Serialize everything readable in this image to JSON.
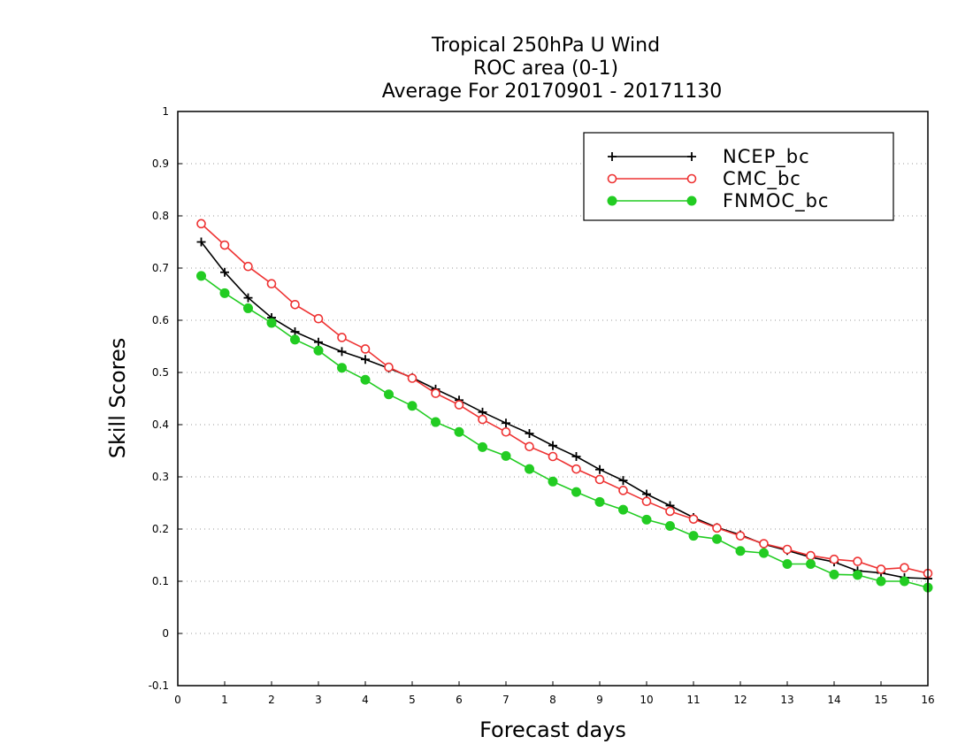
{
  "chart_data": {
    "type": "line",
    "title_lines": [
      "Tropical 250hPa U Wind",
      "ROC area (0-1)",
      "Average For 20170901 - 20171130"
    ],
    "xlabel": "Forecast days",
    "ylabel": "Skill Scores",
    "xlim": [
      0,
      16
    ],
    "ylim": [
      -0.1,
      1
    ],
    "xticks": [
      0,
      1,
      2,
      3,
      4,
      5,
      6,
      7,
      8,
      9,
      10,
      11,
      12,
      13,
      14,
      15,
      16
    ],
    "yticks": [
      -0.1,
      0,
      0.1,
      0.2,
      0.3,
      0.4,
      0.5,
      0.6,
      0.7,
      0.8,
      0.9,
      1
    ],
    "ytick_labels": [
      "-0.1",
      "0",
      "0.1",
      "0.2",
      "0.3",
      "0.4",
      "0.5",
      "0.6",
      "0.7",
      "0.8",
      "0.9",
      "1"
    ],
    "grid": "horizontal dotted",
    "legend_position": "top-right",
    "x": [
      0.5,
      1,
      1.5,
      2,
      2.5,
      3,
      3.5,
      4,
      4.5,
      5,
      5.5,
      6,
      6.5,
      7,
      7.5,
      8,
      8.5,
      9,
      9.5,
      10,
      10.5,
      11,
      11.5,
      12,
      12.5,
      13,
      13.5,
      14,
      14.5,
      15,
      15.5,
      16
    ],
    "series": [
      {
        "name": "NCEP_bc",
        "color": "#000000",
        "marker": "plus",
        "values": [
          0.75,
          0.692,
          0.643,
          0.605,
          0.578,
          0.558,
          0.54,
          0.525,
          0.508,
          0.49,
          0.468,
          0.447,
          0.424,
          0.403,
          0.383,
          0.36,
          0.339,
          0.314,
          0.293,
          0.267,
          0.245,
          0.222,
          0.203,
          0.189,
          0.171,
          0.159,
          0.146,
          0.137,
          0.12,
          0.116,
          0.107,
          0.105
        ]
      },
      {
        "name": "CMC_bc",
        "color": "#ee3333",
        "marker": "open-circle",
        "values": [
          0.785,
          0.744,
          0.703,
          0.67,
          0.63,
          0.603,
          0.567,
          0.545,
          0.51,
          0.489,
          0.46,
          0.438,
          0.41,
          0.386,
          0.358,
          0.339,
          0.315,
          0.295,
          0.274,
          0.253,
          0.234,
          0.219,
          0.202,
          0.187,
          0.172,
          0.161,
          0.149,
          0.142,
          0.138,
          0.123,
          0.126,
          0.115
        ]
      },
      {
        "name": "FNMOC_bc",
        "color": "#22cc22",
        "marker": "filled-circle",
        "values": [
          0.685,
          0.652,
          0.623,
          0.595,
          0.563,
          0.542,
          0.509,
          0.486,
          0.458,
          0.436,
          0.405,
          0.386,
          0.357,
          0.34,
          0.315,
          0.291,
          0.271,
          0.252,
          0.237,
          0.218,
          0.206,
          0.187,
          0.181,
          0.158,
          0.154,
          0.133,
          0.133,
          0.113,
          0.112,
          0.1,
          0.1,
          0.088
        ]
      }
    ]
  }
}
